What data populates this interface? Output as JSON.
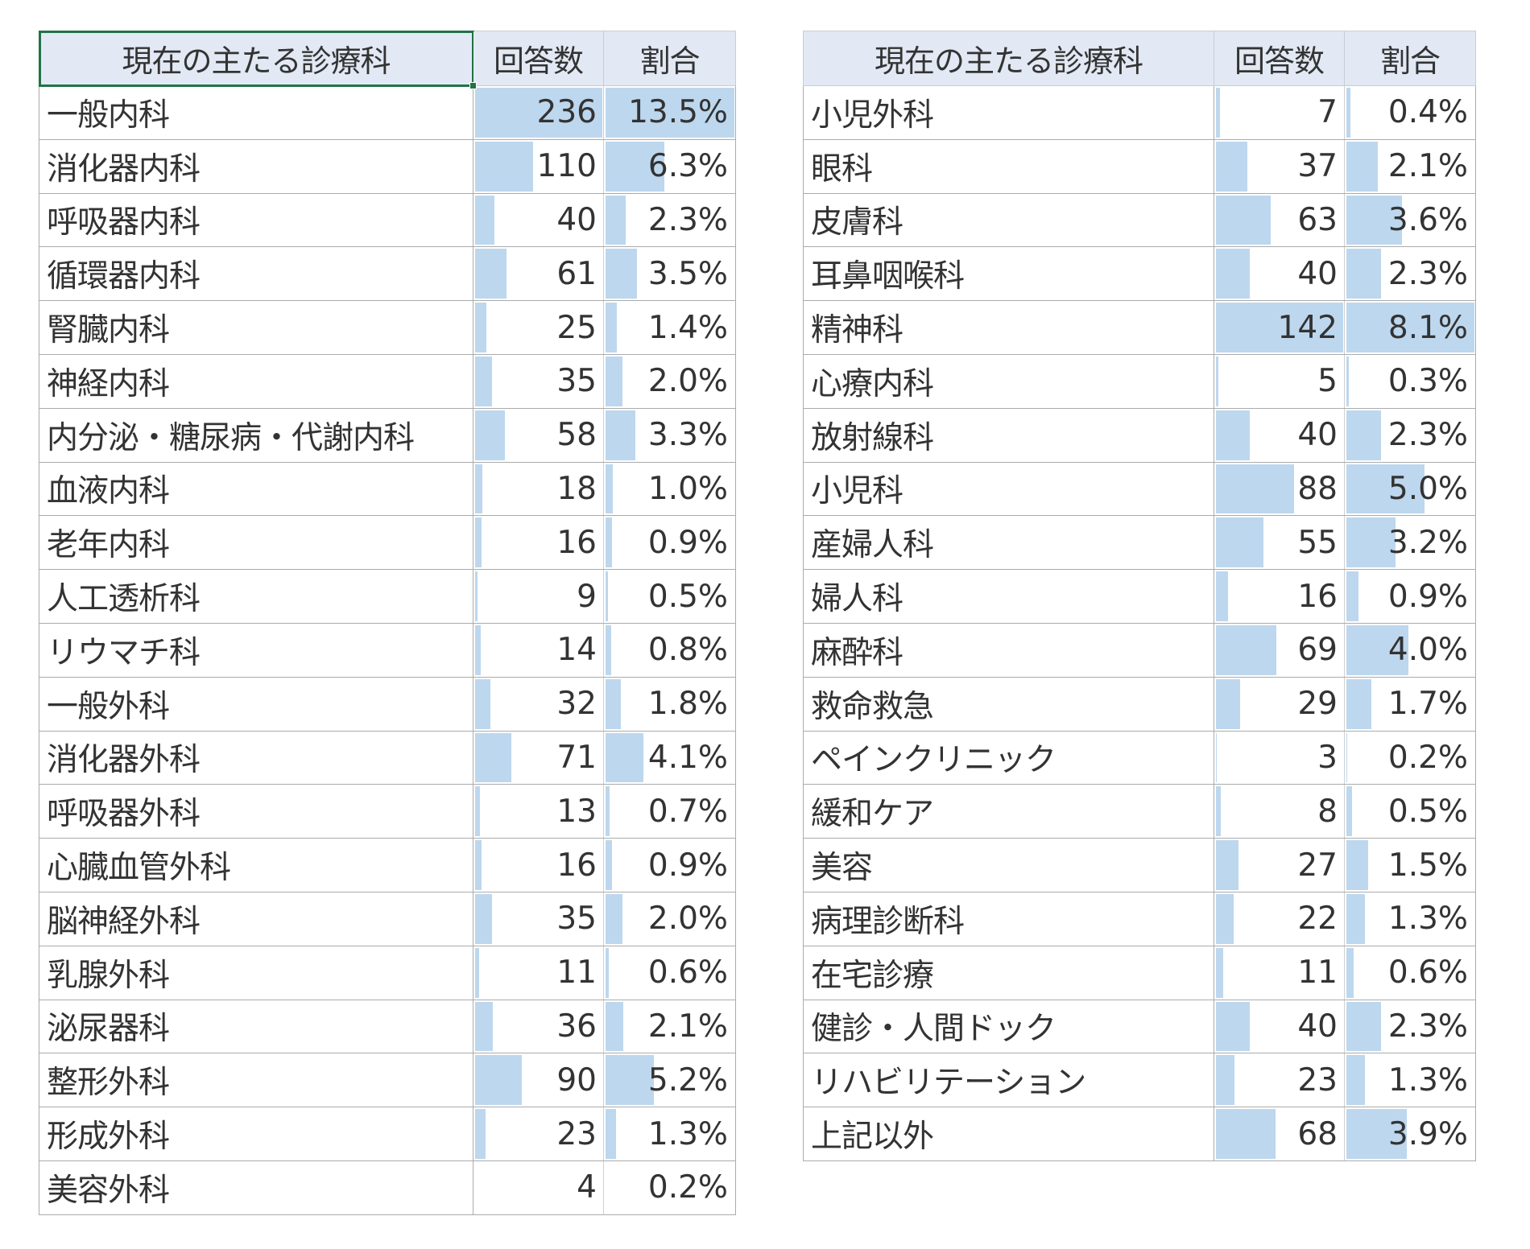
{
  "headers": {
    "department": "現在の主たる診療科",
    "responses": "回答数",
    "ratio": "割合"
  },
  "colors": {
    "header_bg": "#E2E9F4",
    "data_bar": "#BDD7EE",
    "selection": "#217346",
    "text": "#333333"
  },
  "left_table": {
    "bar_max_count": 236,
    "bar_max_pct": 13.5,
    "rows": [
      {
        "department": "一般内科",
        "count": 236,
        "pct": "13.5%"
      },
      {
        "department": "消化器内科",
        "count": 110,
        "pct": "6.3%"
      },
      {
        "department": "呼吸器内科",
        "count": 40,
        "pct": "2.3%"
      },
      {
        "department": "循環器内科",
        "count": 61,
        "pct": "3.5%"
      },
      {
        "department": "腎臓内科",
        "count": 25,
        "pct": "1.4%"
      },
      {
        "department": "神経内科",
        "count": 35,
        "pct": "2.0%"
      },
      {
        "department": "内分泌・糖尿病・代謝内科",
        "count": 58,
        "pct": "3.3%"
      },
      {
        "department": "血液内科",
        "count": 18,
        "pct": "1.0%"
      },
      {
        "department": "老年内科",
        "count": 16,
        "pct": "0.9%"
      },
      {
        "department": "人工透析科",
        "count": 9,
        "pct": "0.5%"
      },
      {
        "department": "リウマチ科",
        "count": 14,
        "pct": "0.8%"
      },
      {
        "department": "一般外科",
        "count": 32,
        "pct": "1.8%"
      },
      {
        "department": "消化器外科",
        "count": 71,
        "pct": "4.1%"
      },
      {
        "department": "呼吸器外科",
        "count": 13,
        "pct": "0.7%"
      },
      {
        "department": "心臓血管外科",
        "count": 16,
        "pct": "0.9%"
      },
      {
        "department": "脳神経外科",
        "count": 35,
        "pct": "2.0%"
      },
      {
        "department": "乳腺外科",
        "count": 11,
        "pct": "0.6%"
      },
      {
        "department": "泌尿器科",
        "count": 36,
        "pct": "2.1%"
      },
      {
        "department": "整形外科",
        "count": 90,
        "pct": "5.2%"
      },
      {
        "department": "形成外科",
        "count": 23,
        "pct": "1.3%"
      },
      {
        "department": "美容外科",
        "count": 4,
        "pct": "0.2%"
      }
    ]
  },
  "right_table": {
    "bar_max_count": 142,
    "bar_max_pct": 8.1,
    "rows": [
      {
        "department": "小児外科",
        "count": 7,
        "pct": "0.4%"
      },
      {
        "department": "眼科",
        "count": 37,
        "pct": "2.1%"
      },
      {
        "department": "皮膚科",
        "count": 63,
        "pct": "3.6%"
      },
      {
        "department": "耳鼻咽喉科",
        "count": 40,
        "pct": "2.3%"
      },
      {
        "department": "精神科",
        "count": 142,
        "pct": "8.1%"
      },
      {
        "department": "心療内科",
        "count": 5,
        "pct": "0.3%"
      },
      {
        "department": "放射線科",
        "count": 40,
        "pct": "2.3%"
      },
      {
        "department": "小児科",
        "count": 88,
        "pct": "5.0%"
      },
      {
        "department": "産婦人科",
        "count": 55,
        "pct": "3.2%"
      },
      {
        "department": "婦人科",
        "count": 16,
        "pct": "0.9%"
      },
      {
        "department": "麻酔科",
        "count": 69,
        "pct": "4.0%"
      },
      {
        "department": "救命救急",
        "count": 29,
        "pct": "1.7%"
      },
      {
        "department": "ペインクリニック",
        "count": 3,
        "pct": "0.2%"
      },
      {
        "department": "緩和ケア",
        "count": 8,
        "pct": "0.5%"
      },
      {
        "department": "美容",
        "count": 27,
        "pct": "1.5%"
      },
      {
        "department": "病理診断科",
        "count": 22,
        "pct": "1.3%"
      },
      {
        "department": "在宅診療",
        "count": 11,
        "pct": "0.6%"
      },
      {
        "department": "健診・人間ドック",
        "count": 40,
        "pct": "2.3%"
      },
      {
        "department": "リハビリテーション",
        "count": 23,
        "pct": "1.3%"
      },
      {
        "department": "上記以外",
        "count": 68,
        "pct": "3.9%"
      }
    ]
  }
}
